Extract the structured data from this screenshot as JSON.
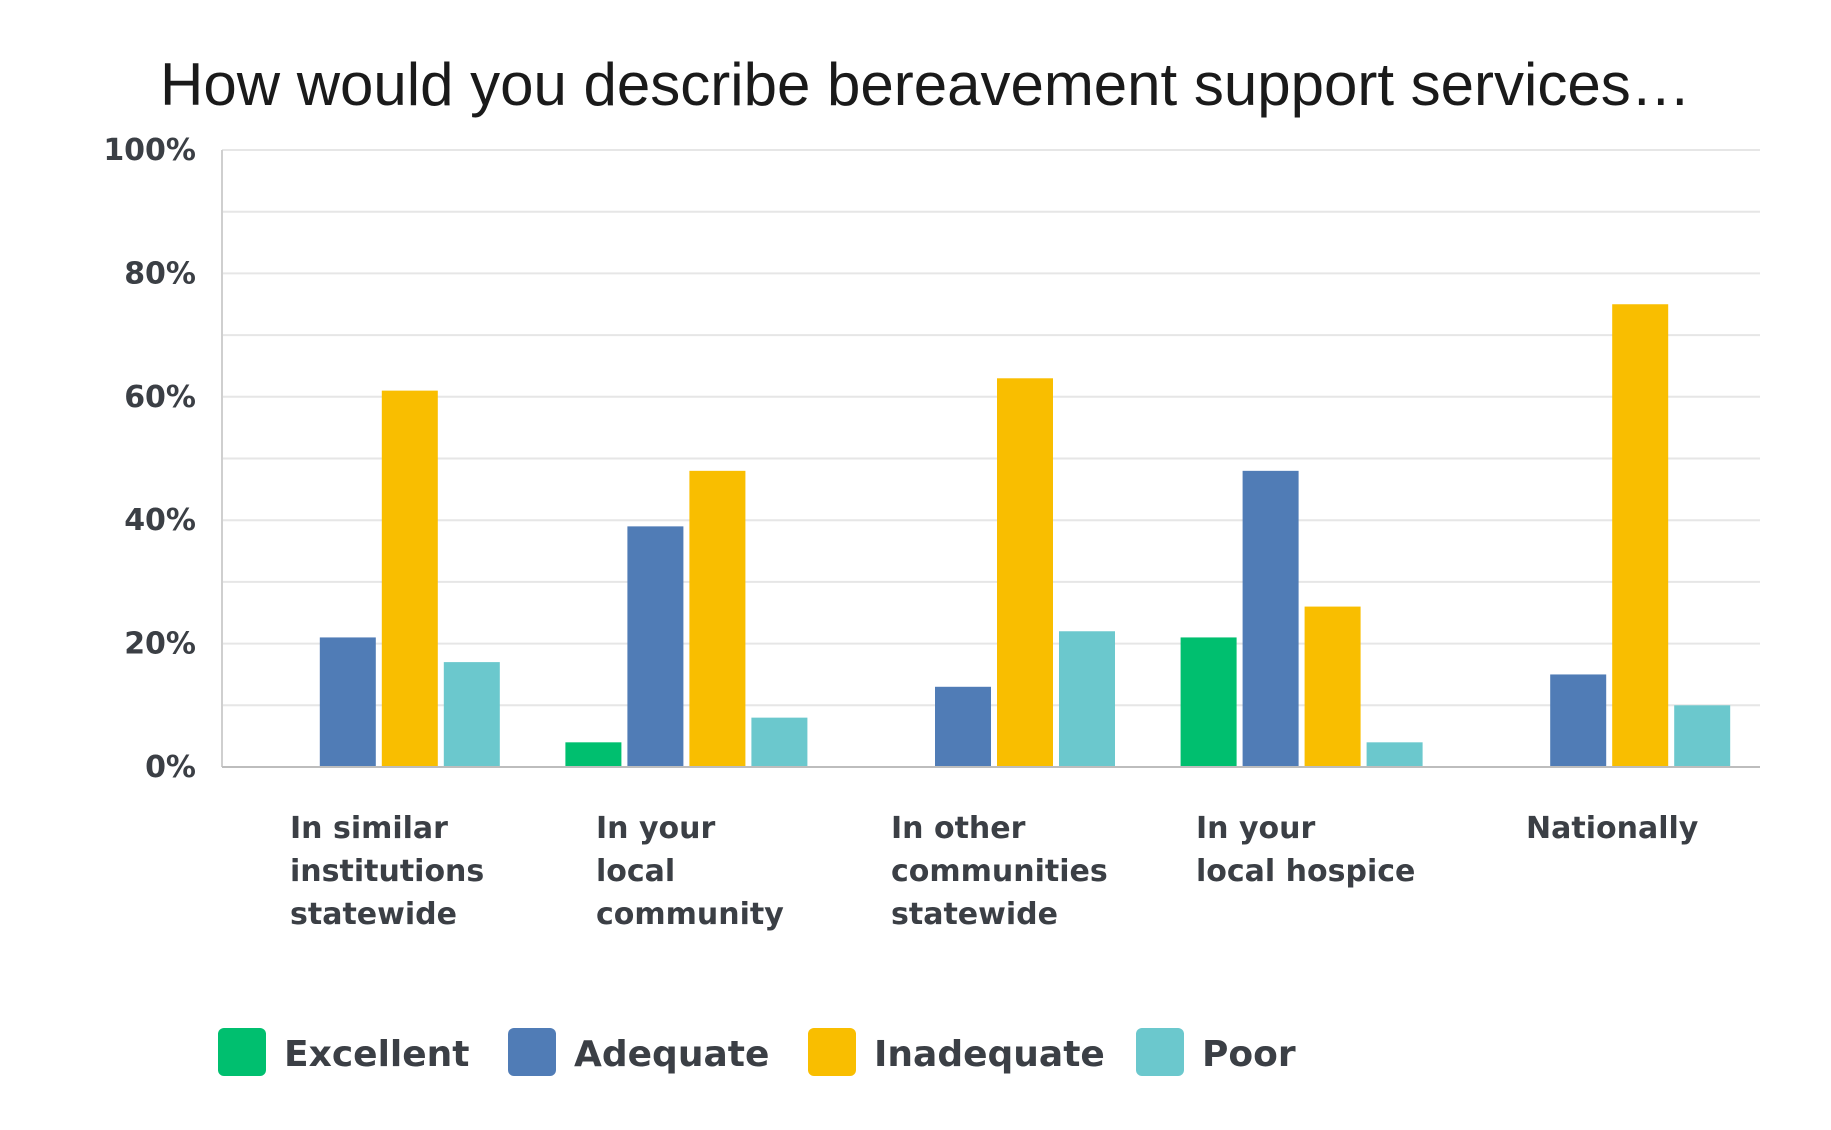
{
  "chart_data": {
    "type": "bar",
    "title": "How would you describe bereavement support services…",
    "xlabel": "",
    "ylabel": "",
    "ylim": [
      0,
      100
    ],
    "y_ticks": [
      "0%",
      "20%",
      "40%",
      "60%",
      "80%",
      "100%"
    ],
    "grid": true,
    "legend_position": "bottom",
    "categories": [
      "In similar institutions statewide",
      "In your local community",
      "In other communities statewide",
      "In your local hospice",
      "Nationally"
    ],
    "category_lines": [
      [
        "In similar",
        "institutions",
        "statewide"
      ],
      [
        "In your",
        "local",
        "community"
      ],
      [
        "In other",
        "communities",
        "statewide"
      ],
      [
        "In your",
        "local hospice"
      ],
      [
        "Nationally"
      ]
    ],
    "series": [
      {
        "name": "Excellent",
        "color": "#00bf6f",
        "values": [
          0,
          4,
          0,
          21,
          0
        ]
      },
      {
        "name": "Adequate",
        "color": "#507cb6",
        "values": [
          21,
          39,
          13,
          48,
          15
        ]
      },
      {
        "name": "Inadequate",
        "color": "#f9be00",
        "values": [
          61,
          48,
          63,
          26,
          75
        ]
      },
      {
        "name": "Poor",
        "color": "#6bc8cd",
        "values": [
          17,
          8,
          22,
          4,
          10
        ]
      }
    ]
  }
}
